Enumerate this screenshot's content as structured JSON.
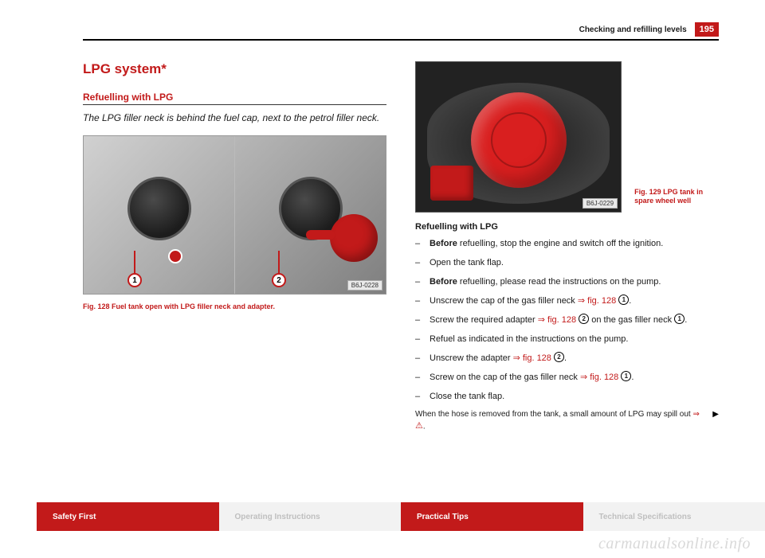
{
  "page": {
    "header_title": "Checking and refilling levels",
    "number": "195"
  },
  "left": {
    "section_title": "LPG system*",
    "subheading": "Refuelling with LPG",
    "desc": "The LPG filler neck is behind the fuel cap, next to the petrol filler neck.",
    "fig128": {
      "callout1": "1",
      "callout2": "2",
      "code": "B6J-0228",
      "caption": "Fig. 128   Fuel tank open with LPG filler neck and adapter."
    }
  },
  "right": {
    "fig129": {
      "code": "B6J-0229",
      "caption": "Fig. 129   LPG tank in spare wheel well"
    },
    "refuel_heading": "Refuelling with LPG",
    "steps": [
      {
        "pre": "",
        "bold": "Before",
        "post": " refuelling, stop the engine and switch off the ignition."
      },
      {
        "pre": "Open the tank flap.",
        "bold": "",
        "post": ""
      },
      {
        "pre": "",
        "bold": "Before",
        "post": " refuelling, please read the instructions on the pump."
      },
      {
        "pre": "Unscrew the cap of the gas filler neck  ",
        "ref": "⇒ fig. 128",
        "circ": "1",
        "post2": "."
      },
      {
        "pre": "Screw the required adapter ",
        "ref": "⇒ fig. 128",
        "circ": "2",
        "post2": " on the gas filler neck ",
        "circ2": "1",
        "post3": "."
      },
      {
        "pre": "Refuel as indicated in the instructions on the pump.",
        "bold": "",
        "post": ""
      },
      {
        "pre": "Unscrew the adapter ",
        "ref": "⇒ fig. 128",
        "circ": "2",
        "post2": "."
      },
      {
        "pre": "Screw on the cap of the gas filler neck ",
        "ref": "⇒ fig. 128",
        "circ": "1",
        "post2": "."
      },
      {
        "pre": "Close the tank flap.",
        "bold": "",
        "post": ""
      }
    ],
    "spill_pre": "When the hose is removed from the tank, a small amount of LPG may spill out ",
    "spill_arrow": "⇒",
    "spill_dot": "."
  },
  "nav": {
    "safety": "Safety First",
    "operating": "Operating Instructions",
    "practical": "Practical Tips",
    "tech": "Technical Specifications"
  },
  "watermark": "carmanualsonline.info",
  "colors": {
    "brand_red": "#c21a1a",
    "nav_grey_bg": "#f2f2f2",
    "nav_grey_text": "#bfbfbf"
  }
}
